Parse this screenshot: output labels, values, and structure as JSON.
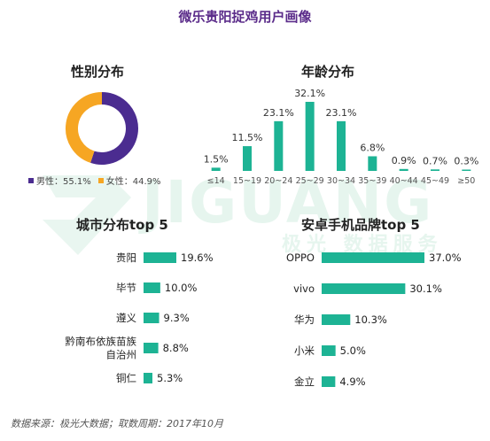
{
  "title": "微乐贵阳捉鸡用户画像",
  "watermark": {
    "brand": "JIGUANG",
    "sub": "极光 数据服务"
  },
  "source": "数据来源：极光大数据；取数周期：2017年10月",
  "colors": {
    "accent_teal": "#1db394",
    "purple": "#4b2c90",
    "orange": "#f6a623"
  },
  "chart_data": [
    {
      "type": "pie",
      "title": "性别分布",
      "labels": [
        "男性",
        "女性"
      ],
      "values": [
        55.1,
        44.9
      ],
      "legend": [
        "男性：55.1%",
        "女性：44.9%"
      ],
      "colors": [
        "#4b2c90",
        "#f6a623"
      ]
    },
    {
      "type": "bar",
      "title": "年龄分布",
      "categories": [
        "≤14",
        "15~19",
        "20~24",
        "25~29",
        "30~34",
        "35~39",
        "40~44",
        "45~49",
        "≥50"
      ],
      "values": [
        1.5,
        11.5,
        23.1,
        32.1,
        23.1,
        6.8,
        0.9,
        0.7,
        0.3
      ],
      "labels": [
        "1.5%",
        "11.5%",
        "23.1%",
        "32.1%",
        "23.1%",
        "6.8%",
        "0.9%",
        "0.7%",
        "0.3%"
      ]
    },
    {
      "type": "bar",
      "orientation": "horizontal",
      "title": "城市分布top 5",
      "categories": [
        "贵阳",
        "毕节",
        "遵义",
        "黔南布依族苗族自治州",
        "铜仁"
      ],
      "category_lines": [
        [
          "贵阳"
        ],
        [
          "毕节"
        ],
        [
          "遵义"
        ],
        [
          "黔南布依族苗族",
          "自治州"
        ],
        [
          "铜仁"
        ]
      ],
      "values": [
        19.6,
        10.0,
        9.3,
        8.8,
        5.3
      ],
      "labels": [
        "19.6%",
        "10.0%",
        "9.3%",
        "8.8%",
        "5.3%"
      ]
    },
    {
      "type": "bar",
      "orientation": "horizontal",
      "title": "安卓手机品牌top 5",
      "categories": [
        "OPPO",
        "vivo",
        "华为",
        "小米",
        "金立"
      ],
      "values": [
        37.0,
        30.1,
        10.3,
        5.0,
        4.9
      ],
      "labels": [
        "37.0%",
        "30.1%",
        "10.3%",
        "5.0%",
        "4.9%"
      ]
    }
  ]
}
